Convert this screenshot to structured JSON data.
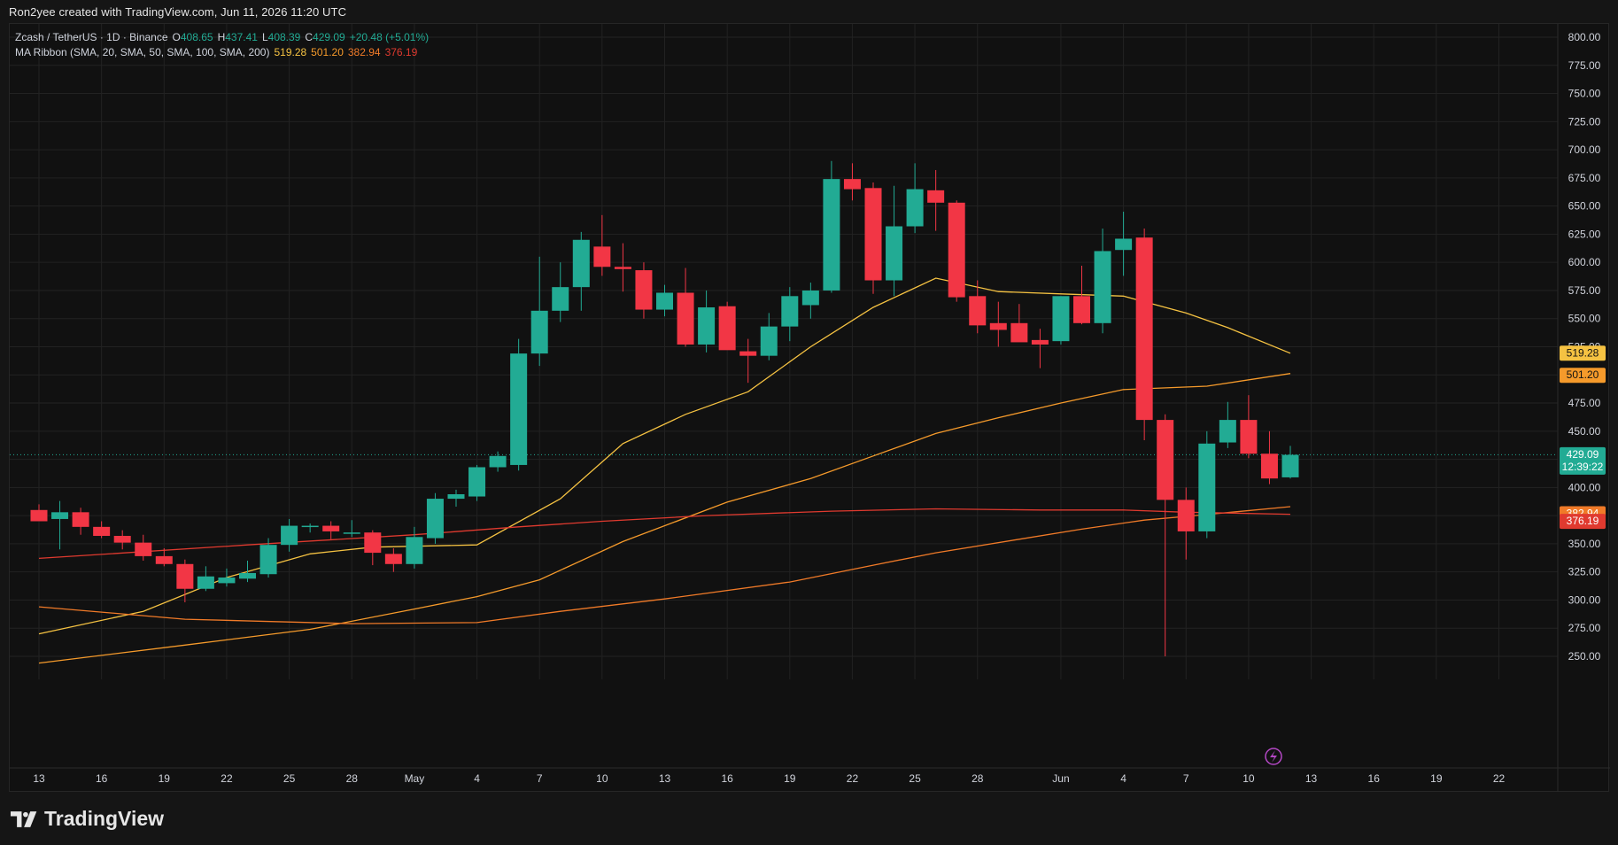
{
  "header": {
    "attribution": "Ron2yee created with TradingView.com, Jun 11, 2026 11:20 UTC"
  },
  "legend": {
    "symbol": "Zcash / TetherUS · 1D · Binance",
    "o_label": "O",
    "o_value": "408.65",
    "h_label": "H",
    "h_value": "437.41",
    "l_label": "L",
    "l_value": "408.39",
    "c_label": "C",
    "c_value": "429.09",
    "change": "+20.48 (+5.01%)",
    "ma_title": "MA Ribbon (SMA, 20, SMA, 50, SMA, 100, SMA, 200)",
    "ma_values": [
      "519.28",
      "501.20",
      "382.94",
      "376.19"
    ]
  },
  "brand": {
    "name": "TradingView"
  },
  "colors": {
    "up": "#22ab94",
    "down": "#f23645",
    "grid": "#222222",
    "ma20": "#f5c242",
    "ma50": "#f59a2b",
    "ma100": "#f07a28",
    "ma200": "#e03a2f"
  },
  "chart_data": {
    "type": "candlestick",
    "symbol": "Zcash / TetherUS",
    "interval": "1D",
    "exchange": "Binance",
    "y_axis": {
      "ticks": [
        "800.00",
        "775.00",
        "750.00",
        "725.00",
        "700.00",
        "675.00",
        "650.00",
        "625.00",
        "600.00",
        "575.00",
        "550.00",
        "525.00",
        "500.00",
        "475.00",
        "450.00",
        "425.00",
        "400.00",
        "375.00",
        "350.00",
        "325.00",
        "300.00",
        "275.00",
        "250.00"
      ],
      "range": [
        243,
        808
      ]
    },
    "x_axis": {
      "labels": [
        {
          "day": 0,
          "text": "13"
        },
        {
          "day": 3,
          "text": "16"
        },
        {
          "day": 6,
          "text": "19"
        },
        {
          "day": 9,
          "text": "22"
        },
        {
          "day": 12,
          "text": "25"
        },
        {
          "day": 15,
          "text": "28"
        },
        {
          "day": 18,
          "text": "May"
        },
        {
          "day": 21,
          "text": "4"
        },
        {
          "day": 24,
          "text": "7"
        },
        {
          "day": 27,
          "text": "10"
        },
        {
          "day": 30,
          "text": "13"
        },
        {
          "day": 33,
          "text": "16"
        },
        {
          "day": 36,
          "text": "19"
        },
        {
          "day": 39,
          "text": "22"
        },
        {
          "day": 42,
          "text": "25"
        },
        {
          "day": 45,
          "text": "28"
        },
        {
          "day": 49,
          "text": "Jun"
        },
        {
          "day": 52,
          "text": "4"
        },
        {
          "day": 55,
          "text": "7"
        },
        {
          "day": 58,
          "text": "10"
        },
        {
          "day": 61,
          "text": "13"
        },
        {
          "day": 64,
          "text": "16"
        },
        {
          "day": 67,
          "text": "19"
        },
        {
          "day": 70,
          "text": "22"
        }
      ]
    },
    "candles": [
      {
        "o": 380,
        "h": 385,
        "l": 372,
        "c": 370
      },
      {
        "o": 372,
        "h": 388,
        "l": 345,
        "c": 378
      },
      {
        "o": 378,
        "h": 382,
        "l": 358,
        "c": 365
      },
      {
        "o": 365,
        "h": 370,
        "l": 355,
        "c": 357
      },
      {
        "o": 357,
        "h": 362,
        "l": 345,
        "c": 351
      },
      {
        "o": 351,
        "h": 358,
        "l": 335,
        "c": 339
      },
      {
        "o": 339,
        "h": 346,
        "l": 330,
        "c": 332
      },
      {
        "o": 332,
        "h": 336,
        "l": 298,
        "c": 310
      },
      {
        "o": 310,
        "h": 330,
        "l": 308,
        "c": 321
      },
      {
        "o": 315,
        "h": 328,
        "l": 312,
        "c": 320
      },
      {
        "o": 319,
        "h": 335,
        "l": 316,
        "c": 324
      },
      {
        "o": 323,
        "h": 355,
        "l": 320,
        "c": 349
      },
      {
        "o": 349,
        "h": 372,
        "l": 343,
        "c": 366
      },
      {
        "o": 366,
        "h": 368,
        "l": 360,
        "c": 366
      },
      {
        "o": 366,
        "h": 370,
        "l": 354,
        "c": 361
      },
      {
        "o": 360,
        "h": 371,
        "l": 356,
        "c": 360
      },
      {
        "o": 360,
        "h": 362,
        "l": 331,
        "c": 342
      },
      {
        "o": 341,
        "h": 346,
        "l": 325,
        "c": 332
      },
      {
        "o": 332,
        "h": 365,
        "l": 328,
        "c": 356
      },
      {
        "o": 355,
        "h": 395,
        "l": 350,
        "c": 390
      },
      {
        "o": 390,
        "h": 398,
        "l": 383,
        "c": 394
      },
      {
        "o": 392,
        "h": 420,
        "l": 388,
        "c": 418
      },
      {
        "o": 418,
        "h": 432,
        "l": 414,
        "c": 428
      },
      {
        "o": 420,
        "h": 532,
        "l": 415,
        "c": 519
      },
      {
        "o": 519,
        "h": 605,
        "l": 508,
        "c": 557
      },
      {
        "o": 557,
        "h": 600,
        "l": 547,
        "c": 578
      },
      {
        "o": 578,
        "h": 627,
        "l": 557,
        "c": 620
      },
      {
        "o": 614,
        "h": 642,
        "l": 588,
        "c": 596
      },
      {
        "o": 596,
        "h": 617,
        "l": 574,
        "c": 594
      },
      {
        "o": 593,
        "h": 600,
        "l": 550,
        "c": 558
      },
      {
        "o": 558,
        "h": 580,
        "l": 552,
        "c": 573
      },
      {
        "o": 573,
        "h": 595,
        "l": 525,
        "c": 527
      },
      {
        "o": 527,
        "h": 575,
        "l": 520,
        "c": 560
      },
      {
        "o": 561,
        "h": 565,
        "l": 523,
        "c": 522
      },
      {
        "o": 521,
        "h": 532,
        "l": 493,
        "c": 517
      },
      {
        "o": 517,
        "h": 555,
        "l": 513,
        "c": 543
      },
      {
        "o": 543,
        "h": 578,
        "l": 530,
        "c": 570
      },
      {
        "o": 562,
        "h": 582,
        "l": 550,
        "c": 575
      },
      {
        "o": 575,
        "h": 690,
        "l": 573,
        "c": 674
      },
      {
        "o": 674,
        "h": 688,
        "l": 655,
        "c": 665
      },
      {
        "o": 666,
        "h": 671,
        "l": 572,
        "c": 584
      },
      {
        "o": 584,
        "h": 668,
        "l": 570,
        "c": 632
      },
      {
        "o": 632,
        "h": 688,
        "l": 626,
        "c": 665
      },
      {
        "o": 664,
        "h": 682,
        "l": 628,
        "c": 653
      },
      {
        "o": 653,
        "h": 655,
        "l": 565,
        "c": 569
      },
      {
        "o": 570,
        "h": 584,
        "l": 537,
        "c": 544
      },
      {
        "o": 546,
        "h": 565,
        "l": 525,
        "c": 540
      },
      {
        "o": 546,
        "h": 563,
        "l": 534,
        "c": 529
      },
      {
        "o": 531,
        "h": 541,
        "l": 506,
        "c": 527
      },
      {
        "o": 530,
        "h": 570,
        "l": 527,
        "c": 570
      },
      {
        "o": 570,
        "h": 597,
        "l": 545,
        "c": 546
      },
      {
        "o": 546,
        "h": 630,
        "l": 537,
        "c": 610
      },
      {
        "o": 611,
        "h": 645,
        "l": 588,
        "c": 621
      },
      {
        "o": 622,
        "h": 630,
        "l": 442,
        "c": 460
      },
      {
        "o": 460,
        "h": 465,
        "l": 250,
        "c": 389
      },
      {
        "o": 389,
        "h": 400,
        "l": 336,
        "c": 361
      },
      {
        "o": 361,
        "h": 450,
        "l": 355,
        "c": 439
      },
      {
        "o": 440,
        "h": 476,
        "l": 435,
        "c": 460
      },
      {
        "o": 460,
        "h": 482,
        "l": 426,
        "c": 430
      },
      {
        "o": 430,
        "h": 450,
        "l": 403,
        "c": 408
      },
      {
        "o": 409,
        "h": 437,
        "l": 408,
        "c": 429
      }
    ],
    "series": [
      {
        "name": "SMA 20",
        "value_label": "519.28",
        "points": [
          [
            0,
            270
          ],
          [
            5,
            290
          ],
          [
            9,
            320
          ],
          [
            13,
            341
          ],
          [
            16,
            347
          ],
          [
            21,
            349
          ],
          [
            25,
            390
          ],
          [
            28,
            439
          ],
          [
            31,
            465
          ],
          [
            34,
            485
          ],
          [
            37,
            525
          ],
          [
            40,
            560
          ],
          [
            43,
            586
          ],
          [
            46,
            574
          ],
          [
            49,
            572
          ],
          [
            52,
            570
          ],
          [
            55,
            555
          ],
          [
            57,
            542
          ],
          [
            60,
            519.28
          ]
        ]
      },
      {
        "name": "SMA 50",
        "value_label": "501.20",
        "points": [
          [
            0,
            244
          ],
          [
            7,
            260
          ],
          [
            13,
            274
          ],
          [
            18,
            292
          ],
          [
            21,
            303
          ],
          [
            24,
            318
          ],
          [
            28,
            352
          ],
          [
            33,
            387
          ],
          [
            37,
            408
          ],
          [
            40,
            428
          ],
          [
            43,
            448
          ],
          [
            46,
            462
          ],
          [
            49,
            475
          ],
          [
            52,
            487
          ],
          [
            56,
            490
          ],
          [
            60,
            501.2
          ]
        ]
      },
      {
        "name": "SMA 100",
        "value_label": "382.94",
        "points": [
          [
            0,
            294
          ],
          [
            7,
            283
          ],
          [
            15,
            279
          ],
          [
            21,
            280
          ],
          [
            25,
            290
          ],
          [
            30,
            301
          ],
          [
            36,
            316
          ],
          [
            40,
            331
          ],
          [
            43,
            342
          ],
          [
            47,
            354
          ],
          [
            50,
            363
          ],
          [
            53,
            371
          ],
          [
            56,
            376
          ],
          [
            60,
            382.94
          ]
        ]
      },
      {
        "name": "SMA 200",
        "value_label": "376.19",
        "points": [
          [
            0,
            337
          ],
          [
            10,
            349
          ],
          [
            18,
            358
          ],
          [
            23,
            365
          ],
          [
            27,
            370
          ],
          [
            32,
            375
          ],
          [
            38,
            379
          ],
          [
            43,
            381
          ],
          [
            48,
            380
          ],
          [
            52,
            380
          ],
          [
            55,
            378
          ],
          [
            60,
            376.19
          ]
        ]
      }
    ],
    "last_price": {
      "value": 429.09,
      "label": "429.09",
      "countdown": "12:39:22"
    },
    "grid": true
  }
}
